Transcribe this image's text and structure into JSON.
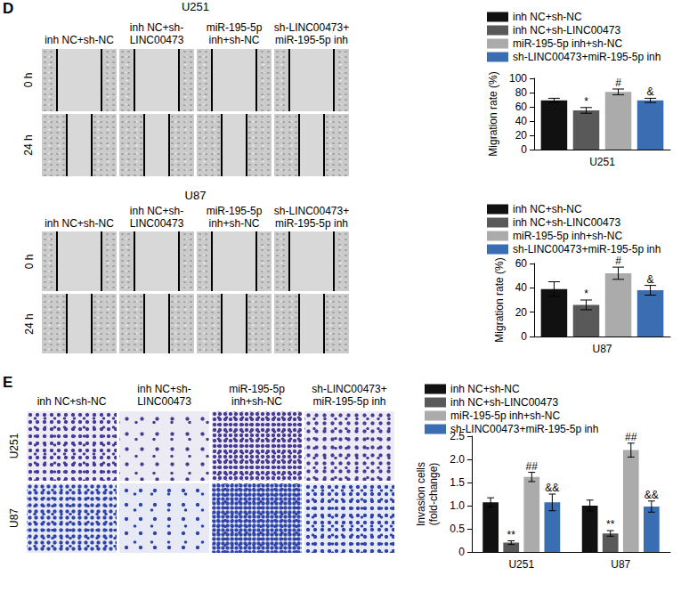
{
  "panels": [
    {
      "label": "D",
      "groups": [
        {
          "title": "U251",
          "columns": [
            [
              "inh NC+sh-NC"
            ],
            [
              "inh NC+sh-",
              "LINC00473"
            ],
            [
              "miR-195-5p",
              "inh+sh-NC"
            ],
            [
              "sh-LINC00473+",
              "miR-195-5p inh"
            ]
          ],
          "rows": [
            "0 h",
            "24 h"
          ]
        },
        {
          "title": "U87",
          "columns": [
            [
              "inh NC+sh-NC"
            ],
            [
              "inh NC+sh-",
              "LINC00473"
            ],
            [
              "miR-195-5p",
              "inh+sh-NC"
            ],
            [
              "sh-LINC00473+",
              "miR-195-5p inh"
            ]
          ],
          "rows": [
            "0 h",
            "24 h"
          ]
        }
      ]
    },
    {
      "label": "E",
      "columns": [
        [
          "inh NC+sh-NC"
        ],
        [
          "inh NC+sh-",
          "LINC00473"
        ],
        [
          "miR-195-5p",
          "inh+sh-NC"
        ],
        [
          "sh-LINC00473+",
          "miR-195-5p inh"
        ]
      ],
      "rows": [
        "U251",
        "U87"
      ]
    }
  ],
  "chart_data": [
    {
      "type": "bar",
      "categories": [
        "U251"
      ],
      "ylabel": [
        "Migration rate (%)"
      ],
      "ylim": [
        0,
        100
      ],
      "yticks": [
        0,
        20,
        40,
        60,
        80,
        100
      ],
      "grid": false,
      "legend": "top",
      "series": [
        {
          "name": "inh NC+sh-NC",
          "color": "#111111",
          "values": [
            69
          ],
          "errors": [
            3
          ],
          "annotations": [
            null
          ]
        },
        {
          "name": "inh NC+sh-LINC00473",
          "color": "#595959",
          "values": [
            55
          ],
          "errors": [
            4
          ],
          "annotations": [
            "*"
          ]
        },
        {
          "name": "miR-195-5p inh+sh-NC",
          "color": "#ababab",
          "values": [
            81
          ],
          "errors": [
            4
          ],
          "annotations": [
            "#"
          ]
        },
        {
          "name": "sh-LINC00473+miR-195-5p inh",
          "color": "#3b6db3",
          "values": [
            69
          ],
          "errors": [
            3
          ],
          "annotations": [
            "&"
          ]
        }
      ]
    },
    {
      "type": "bar",
      "categories": [
        "U87"
      ],
      "ylabel": [
        "Migration rate (%)"
      ],
      "ylim": [
        0,
        60
      ],
      "yticks": [
        0,
        20,
        40,
        60
      ],
      "grid": false,
      "legend": "top",
      "series": [
        {
          "name": "inh NC+sh-NC",
          "color": "#111111",
          "values": [
            39
          ],
          "errors": [
            6
          ],
          "annotations": [
            null
          ]
        },
        {
          "name": "inh NC+sh-LINC00473",
          "color": "#595959",
          "values": [
            26
          ],
          "errors": [
            4
          ],
          "annotations": [
            "*"
          ]
        },
        {
          "name": "miR-195-5p inh+sh-NC",
          "color": "#ababab",
          "values": [
            52
          ],
          "errors": [
            5
          ],
          "annotations": [
            "#"
          ]
        },
        {
          "name": "sh-LINC00473+miR-195-5p inh",
          "color": "#3b6db3",
          "values": [
            38
          ],
          "errors": [
            4
          ],
          "annotations": [
            "&"
          ]
        }
      ]
    },
    {
      "type": "bar",
      "categories": [
        "U251",
        "U87"
      ],
      "ylabel": [
        "Invasion cells",
        "(fold-change)"
      ],
      "ylim": [
        0,
        2.5
      ],
      "yticks": [
        0,
        0.5,
        {
          "value": 1,
          "label": "1.0"
        },
        1.5,
        {
          "value": 2,
          "label": "2.0"
        },
        2.5
      ],
      "grid": false,
      "legend": "top",
      "series": [
        {
          "name": "inh NC+sh-NC",
          "color": "#111111",
          "values": [
            1.07,
            1.0
          ],
          "errors": [
            0.1,
            0.12
          ],
          "annotations": [
            null,
            null
          ]
        },
        {
          "name": "inh NC+sh-LINC00473",
          "color": "#595959",
          "values": [
            0.2,
            0.4
          ],
          "errors": [
            0.04,
            0.06
          ],
          "annotations": [
            "**",
            "**"
          ]
        },
        {
          "name": "miR-195-5p inh+sh-NC",
          "color": "#ababab",
          "values": [
            1.62,
            2.2
          ],
          "errors": [
            0.1,
            0.15
          ],
          "annotations": [
            "##",
            "##"
          ]
        },
        {
          "name": "sh-LINC00473+miR-195-5p inh",
          "color": "#3b6db3",
          "values": [
            1.07,
            0.98
          ],
          "errors": [
            0.18,
            0.12
          ],
          "annotations": [
            "&&",
            "&&"
          ]
        }
      ]
    }
  ]
}
